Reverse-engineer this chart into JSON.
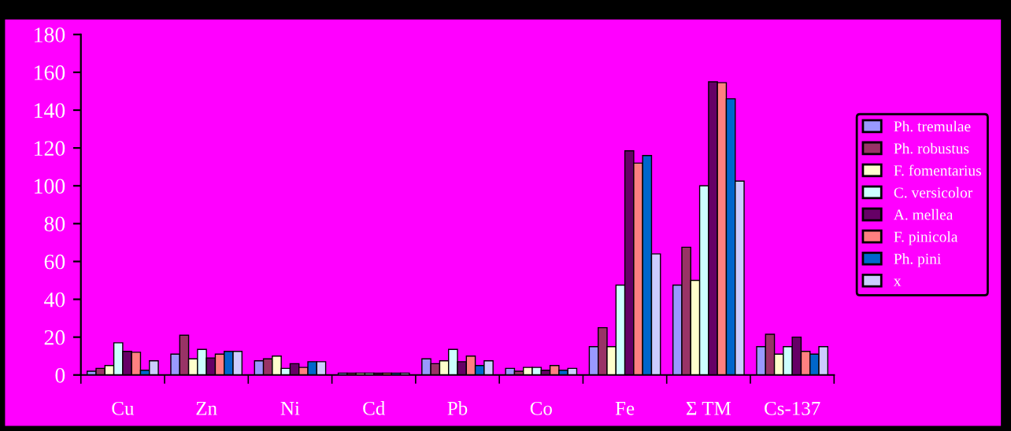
{
  "chart_data": {
    "type": "bar",
    "categories": [
      "Cu",
      "Zn",
      "Ni",
      "Cd",
      "Pb",
      "Co",
      "Fe",
      "Σ TM",
      "Cs-137"
    ],
    "series": [
      {
        "name": "Ph. tremulae",
        "color": "#9999ff",
        "values": [
          2,
          11,
          7.5,
          1,
          8.5,
          3.5,
          15,
          47.5,
          15
        ]
      },
      {
        "name": "Ph. robustus",
        "color": "#993366",
        "values": [
          3.5,
          21,
          8.5,
          1,
          6,
          2,
          25,
          67.5,
          21.5
        ]
      },
      {
        "name": "F. fomentarius",
        "color": "#ffffcc",
        "values": [
          5,
          8.5,
          10,
          1,
          7.5,
          4,
          15,
          50,
          11
        ]
      },
      {
        "name": "C. versicolor",
        "color": "#ccffff",
        "values": [
          17,
          13.5,
          3.5,
          1,
          13.5,
          4,
          47.5,
          100,
          15
        ]
      },
      {
        "name": "A. mellea",
        "color": "#660066",
        "values": [
          12.5,
          9,
          6,
          1,
          7,
          2.5,
          118.5,
          155,
          20
        ]
      },
      {
        "name": "F. pinicola",
        "color": "#ff8080",
        "values": [
          12,
          11,
          4,
          1,
          10,
          5,
          112,
          154.5,
          12.5
        ]
      },
      {
        "name": "Ph. pini",
        "color": "#0066cc",
        "values": [
          2.5,
          12.5,
          7,
          1,
          5,
          2.5,
          116,
          146,
          11
        ]
      },
      {
        "name": "x",
        "color": "#ccccff",
        "values": [
          7.5,
          12.5,
          7,
          1,
          7.5,
          3.5,
          64,
          102.5,
          15
        ]
      }
    ],
    "ylim": [
      0,
      180
    ],
    "yticks": [
      0,
      20,
      40,
      60,
      80,
      100,
      120,
      140,
      160,
      180
    ],
    "grid": false,
    "legend": "right"
  }
}
